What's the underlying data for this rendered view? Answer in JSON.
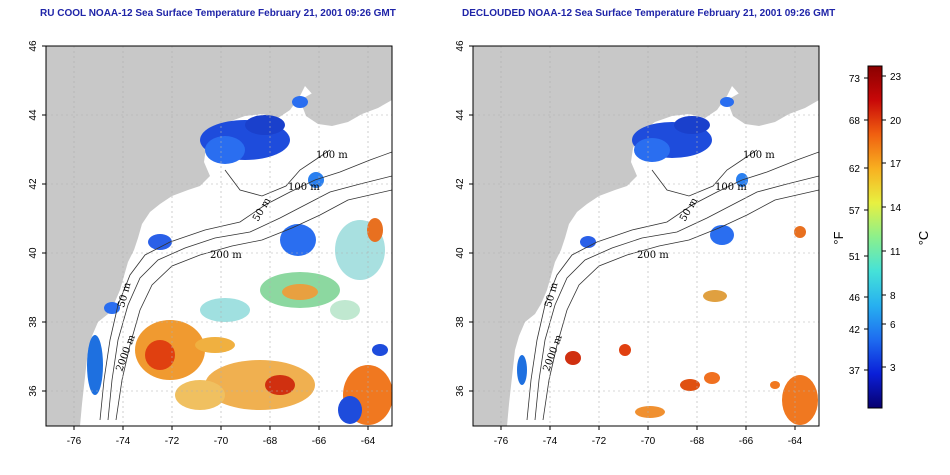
{
  "maps": [
    {
      "id": "left",
      "title": "RU COOL NOAA-12 Sea Surface Temperature February 21, 2001 09:26 GMT",
      "lat_ticks": [
        "46",
        "44",
        "42",
        "40",
        "38",
        "36"
      ],
      "lon_ticks": [
        "-76",
        "-74",
        "-72",
        "-70",
        "-68",
        "-66",
        "-64"
      ],
      "contour_labels": [
        "100 m",
        "100 m",
        "50 m",
        "200 m",
        "50 m",
        "2000 m"
      ]
    },
    {
      "id": "right",
      "title": "DECLOUDED NOAA-12 Sea Surface Temperature February 21, 2001 09:26 GMT",
      "lat_ticks": [
        "46",
        "44",
        "42",
        "40",
        "38",
        "36"
      ],
      "lon_ticks": [
        "-76",
        "-74",
        "-72",
        "-70",
        "-68",
        "-66",
        "-64"
      ],
      "contour_labels": [
        "100 m",
        "100 m",
        "50 m",
        "200 m",
        "50 m",
        "2000 m"
      ]
    }
  ],
  "colorbar": {
    "fahrenheit_unit": "°F",
    "celsius_unit": "°C",
    "fahrenheit_ticks": [
      "73",
      "68",
      "62",
      "57",
      "51",
      "46",
      "42",
      "37"
    ],
    "celsius_ticks": [
      "23",
      "20",
      "17",
      "14",
      "11",
      "8",
      "6",
      "3"
    ],
    "colors": [
      "#08006f",
      "#0a1fd8",
      "#1e6cf0",
      "#27b0f0",
      "#45e2d8",
      "#8cf08c",
      "#e8f040",
      "#f8b020",
      "#f06010",
      "#c80808",
      "#8a0000"
    ]
  },
  "colors": {
    "land": "#c8c8c8",
    "title": "#1f24a8",
    "gridline": "#b0b0b0"
  }
}
